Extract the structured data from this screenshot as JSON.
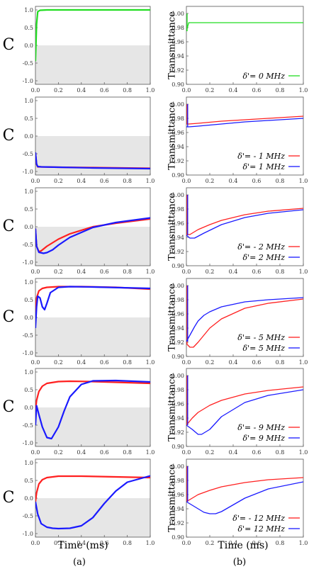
{
  "chart_data": {
    "type": "line",
    "xlim": [
      0,
      1.0
    ],
    "x_ticks": [
      "0.0",
      "0.2",
      "0.4",
      "0.6",
      "0.8",
      "1.0"
    ],
    "left_column": {
      "ylabel": "C",
      "xlabel": "Time (ms)",
      "panel_label": "(a)",
      "ylim": [
        -1.1,
        1.1
      ],
      "y_ticks": [
        "1.0",
        "0.5",
        "0.0",
        "-0.5",
        "-1.0"
      ],
      "shaded_region": "y < 0",
      "panels": [
        {
          "series": [
            {
              "color": "#22dd22",
              "x": [
                0,
                0.01,
                0.02,
                0.04,
                0.1,
                0.3,
                0.6,
                1.0
              ],
              "y": [
                -0.45,
                0.6,
                0.95,
                0.99,
                1.0,
                1.0,
                1.0,
                1.0
              ]
            }
          ]
        },
        {
          "series": [
            {
              "color": "#ff2020",
              "x": [
                0,
                0.01,
                0.02,
                0.05,
                0.2,
                0.5,
                1.0
              ],
              "y": [
                -0.48,
                -0.8,
                -0.87,
                -0.87,
                -0.88,
                -0.89,
                -0.91
              ]
            },
            {
              "color": "#1a1aff",
              "x": [
                0,
                0.01,
                0.02,
                0.05,
                0.2,
                0.5,
                1.0
              ],
              "y": [
                -0.46,
                -0.79,
                -0.86,
                -0.87,
                -0.88,
                -0.9,
                -0.92
              ]
            }
          ]
        },
        {
          "series": [
            {
              "color": "#ff2020",
              "x": [
                0,
                0.01,
                0.03,
                0.05,
                0.1,
                0.2,
                0.3,
                0.5,
                0.7,
                1.0
              ],
              "y": [
                -0.05,
                -0.55,
                -0.7,
                -0.68,
                -0.55,
                -0.35,
                -0.2,
                0.0,
                0.1,
                0.22
              ]
            },
            {
              "color": "#1a1aff",
              "x": [
                0,
                0.01,
                0.03,
                0.07,
                0.1,
                0.15,
                0.2,
                0.3,
                0.5,
                0.7,
                1.0
              ],
              "y": [
                -0.05,
                -0.55,
                -0.72,
                -0.75,
                -0.73,
                -0.65,
                -0.52,
                -0.3,
                -0.02,
                0.12,
                0.25
              ]
            }
          ]
        },
        {
          "series": [
            {
              "color": "#ff2020",
              "x": [
                0,
                0.01,
                0.03,
                0.06,
                0.1,
                0.2,
                0.4,
                0.7,
                1.0
              ],
              "y": [
                0.1,
                0.55,
                0.75,
                0.82,
                0.85,
                0.87,
                0.87,
                0.85,
                0.8
              ]
            },
            {
              "color": "#1a1aff",
              "x": [
                0,
                0.01,
                0.02,
                0.04,
                0.06,
                0.08,
                0.1,
                0.13,
                0.2,
                0.3,
                0.5,
                1.0
              ],
              "y": [
                -0.3,
                0.3,
                0.6,
                0.55,
                0.3,
                0.22,
                0.4,
                0.7,
                0.85,
                0.87,
                0.86,
                0.82
              ]
            }
          ]
        },
        {
          "series": [
            {
              "color": "#ff2020",
              "x": [
                0,
                0.01,
                0.03,
                0.06,
                0.1,
                0.2,
                0.3,
                0.5,
                0.7,
                1.0
              ],
              "y": [
                -0.1,
                0.2,
                0.45,
                0.6,
                0.68,
                0.73,
                0.74,
                0.73,
                0.71,
                0.68
              ]
            },
            {
              "color": "#1a1aff",
              "x": [
                0,
                0.01,
                0.03,
                0.06,
                0.1,
                0.14,
                0.2,
                0.25,
                0.3,
                0.4,
                0.5,
                0.7,
                1.0
              ],
              "y": [
                -0.5,
                0.05,
                -0.2,
                -0.55,
                -0.85,
                -0.88,
                -0.55,
                -0.1,
                0.3,
                0.65,
                0.75,
                0.76,
                0.72
              ]
            }
          ]
        },
        {
          "series": [
            {
              "color": "#ff2020",
              "x": [
                0,
                0.01,
                0.03,
                0.06,
                0.1,
                0.2,
                0.4,
                0.7,
                1.0
              ],
              "y": [
                -0.1,
                0.15,
                0.4,
                0.52,
                0.58,
                0.62,
                0.62,
                0.6,
                0.58
              ]
            },
            {
              "color": "#1a1aff",
              "x": [
                0,
                0.02,
                0.05,
                0.1,
                0.15,
                0.2,
                0.3,
                0.4,
                0.5,
                0.6,
                0.7,
                0.8,
                1.0
              ],
              "y": [
                -0.1,
                -0.45,
                -0.72,
                -0.82,
                -0.85,
                -0.86,
                -0.85,
                -0.78,
                -0.55,
                -0.15,
                0.2,
                0.45,
                0.63
              ]
            }
          ]
        }
      ]
    },
    "right_column": {
      "ylabel": "Transmittance",
      "xlabel": "Time (ms)",
      "panel_label": "(b)",
      "ylim": [
        0.9,
        1.01
      ],
      "y_ticks": [
        "1.00",
        "0.98",
        "0.96",
        "0.94",
        "0.92",
        "0.90"
      ],
      "panels": [
        {
          "legend_position": "bottom-right",
          "series": [
            {
              "name": "δ'= 0 MHz",
              "color": "#22dd22",
              "spike_to": 1.0,
              "x": [
                0,
                0.02,
                0.1,
                0.5,
                1.0
              ],
              "y": [
                0.975,
                0.987,
                0.987,
                0.987,
                0.987
              ]
            }
          ]
        },
        {
          "legend_position": "bottom-right",
          "series": [
            {
              "name": "δ'= - 1 MHz",
              "color": "#ff2020",
              "spike_to": 1.0,
              "x": [
                0,
                0.02,
                0.1,
                0.3,
                0.5,
                0.7,
                1.0
              ],
              "y": [
                0.972,
                0.972,
                0.973,
                0.976,
                0.978,
                0.98,
                0.983
              ]
            },
            {
              "name": "δ'= 1 MHz",
              "color": "#1a1aff",
              "spike_to": 1.0,
              "x": [
                0,
                0.02,
                0.1,
                0.3,
                0.5,
                0.7,
                1.0
              ],
              "y": [
                0.968,
                0.968,
                0.969,
                0.972,
                0.975,
                0.977,
                0.98
              ]
            }
          ]
        },
        {
          "legend_position": "bottom-right",
          "series": [
            {
              "name": "δ'= - 2 MHz",
              "color": "#ff2020",
              "spike_to": 1.0,
              "x": [
                0,
                0.03,
                0.1,
                0.2,
                0.3,
                0.5,
                0.7,
                1.0
              ],
              "y": [
                0.944,
                0.944,
                0.951,
                0.958,
                0.964,
                0.972,
                0.977,
                0.981
              ]
            },
            {
              "name": "δ'= 2 MHz",
              "color": "#1a1aff",
              "spike_to": 1.0,
              "x": [
                0,
                0.03,
                0.07,
                0.15,
                0.3,
                0.5,
                0.7,
                1.0
              ],
              "y": [
                0.943,
                0.939,
                0.939,
                0.946,
                0.958,
                0.968,
                0.974,
                0.979
              ]
            }
          ]
        },
        {
          "legend_position": "bottom-right",
          "series": [
            {
              "name": "δ'= - 5 MHz",
              "color": "#ff2020",
              "spike_to": 1.0,
              "x": [
                0,
                0.03,
                0.06,
                0.1,
                0.15,
                0.2,
                0.3,
                0.5,
                0.7,
                1.0
              ],
              "y": [
                0.918,
                0.913,
                0.913,
                0.92,
                0.93,
                0.94,
                0.953,
                0.968,
                0.975,
                0.981
              ]
            },
            {
              "name": "δ'= 5 MHz",
              "color": "#1a1aff",
              "spike_to": 1.0,
              "x": [
                0,
                0.03,
                0.07,
                0.1,
                0.15,
                0.2,
                0.3,
                0.5,
                0.7,
                1.0
              ],
              "y": [
                0.921,
                0.93,
                0.942,
                0.95,
                0.958,
                0.963,
                0.97,
                0.977,
                0.98,
                0.983
              ]
            }
          ]
        },
        {
          "legend_position": "bottom-right",
          "series": [
            {
              "name": "δ'= - 9 MHz",
              "color": "#ff2020",
              "spike_to": 1.0,
              "x": [
                0,
                0.05,
                0.1,
                0.2,
                0.3,
                0.5,
                0.7,
                1.0
              ],
              "y": [
                0.93,
                0.94,
                0.948,
                0.958,
                0.965,
                0.974,
                0.979,
                0.984
              ]
            },
            {
              "name": "δ'= 9 MHz",
              "color": "#1a1aff",
              "spike_to": 1.0,
              "x": [
                0,
                0.05,
                0.1,
                0.13,
                0.2,
                0.3,
                0.5,
                0.7,
                1.0
              ],
              "y": [
                0.93,
                0.924,
                0.917,
                0.917,
                0.924,
                0.942,
                0.962,
                0.972,
                0.98
              ]
            }
          ]
        },
        {
          "legend_position": "bottom-right",
          "series": [
            {
              "name": "δ'= - 12 MHz",
              "color": "#ff2020",
              "spike_to": 1.0,
              "x": [
                0,
                0.05,
                0.1,
                0.2,
                0.3,
                0.5,
                0.7,
                1.0
              ],
              "y": [
                0.95,
                0.955,
                0.96,
                0.966,
                0.971,
                0.977,
                0.981,
                0.984
              ]
            },
            {
              "name": "δ'= 12 MHz",
              "color": "#1a1aff",
              "spike_to": 1.0,
              "x": [
                0,
                0.05,
                0.1,
                0.15,
                0.2,
                0.25,
                0.3,
                0.5,
                0.7,
                1.0
              ],
              "y": [
                0.95,
                0.945,
                0.94,
                0.935,
                0.933,
                0.933,
                0.936,
                0.955,
                0.968,
                0.978
              ]
            }
          ]
        }
      ]
    }
  }
}
